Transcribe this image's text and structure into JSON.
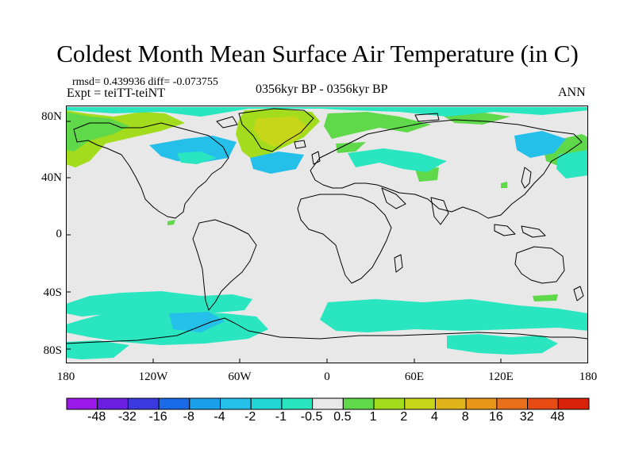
{
  "title": "Coldest Month Mean Surface Air Temperature (in C)",
  "stats": "rmsd= 0.439936 diff= -0.073755",
  "experiment": "Expt = teiTT-teiNT",
  "period": "0356kyr BP - 0356kyr BP",
  "season": "ANN",
  "lat_ticks": [
    "80N",
    "40N",
    "0",
    "40S",
    "80S"
  ],
  "lon_ticks": [
    "180",
    "120W",
    "60W",
    "0",
    "60E",
    "120E",
    "180"
  ],
  "colorbar": {
    "labels": [
      "-48",
      "-32",
      "-16",
      "-8",
      "-4",
      "-2",
      "-1",
      "-0.5",
      "0.5",
      "1",
      "2",
      "4",
      "8",
      "16",
      "32",
      "48"
    ],
    "colors": [
      "#9a19e8",
      "#6a1ee0",
      "#3a3ae0",
      "#1a6ae8",
      "#1aa0ea",
      "#24c0ea",
      "#22d6d6",
      "#2ae6c0",
      "#e8e8e8",
      "#5fd84a",
      "#a2dc1c",
      "#c8d61a",
      "#e0b41a",
      "#e8961a",
      "#e8701a",
      "#e84a14",
      "#d9220a"
    ]
  },
  "colors": {
    "ocean_land_neutral": "#e8e8e8",
    "coast": "#000000"
  }
}
